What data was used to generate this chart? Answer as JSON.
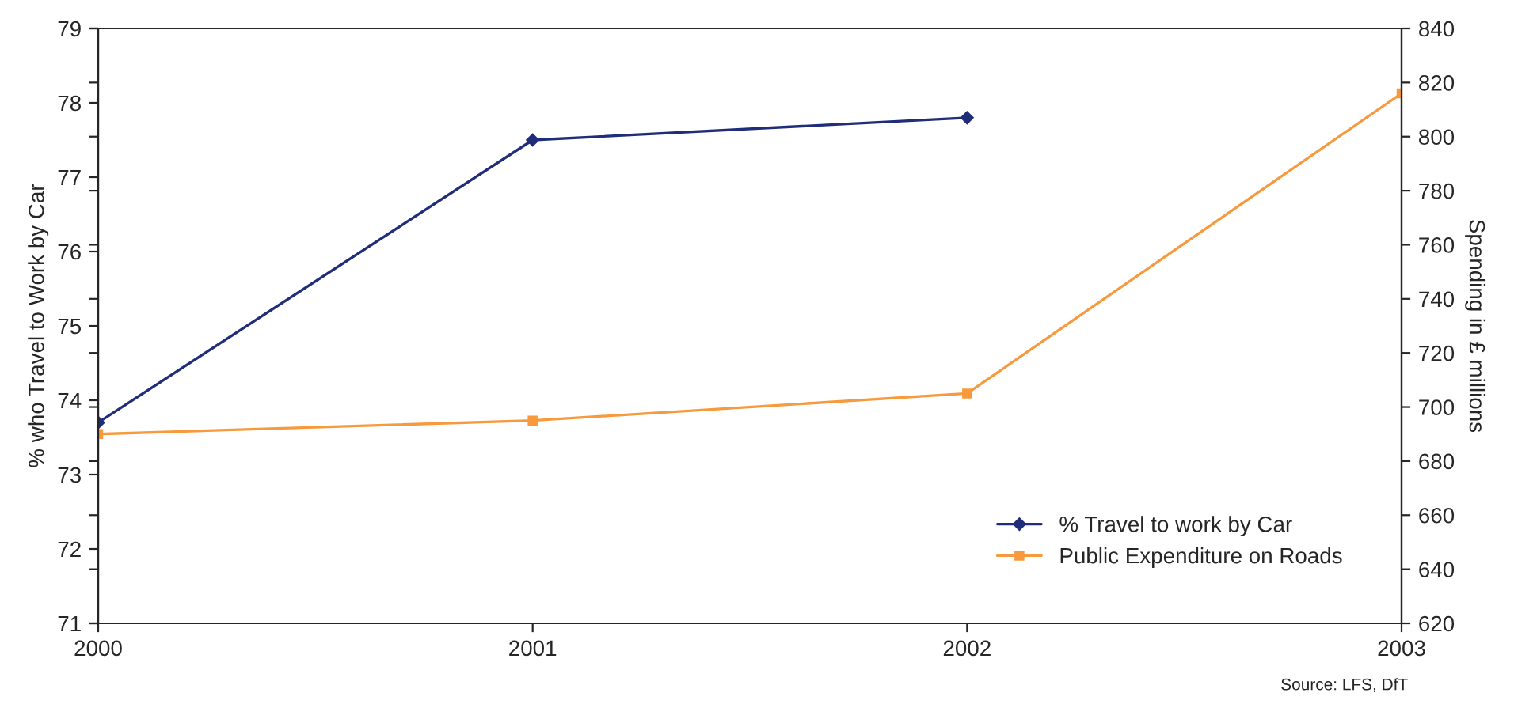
{
  "chart_data": {
    "type": "line",
    "x": [
      2000,
      2001,
      2002,
      2003
    ],
    "series": [
      {
        "name": "% Travel to work by Car",
        "color": "#1f2d7a",
        "marker": "diamond",
        "values": [
          73.7,
          77.5,
          77.8,
          null
        ]
      },
      {
        "name": "Public Expenditure on Roads",
        "color": "#f79a3e",
        "marker": "square",
        "axis": "y2",
        "values": [
          690,
          695,
          705,
          816
        ]
      }
    ],
    "ylabel": "% who Travel to Work by Car",
    "y2label": "Spending in £ millions",
    "xlim": [
      2000,
      2003
    ],
    "xticks": [
      2000,
      2001,
      2002,
      2003
    ],
    "ylim": [
      71,
      79
    ],
    "yticks": [
      71,
      72,
      73,
      74,
      75,
      76,
      77,
      78,
      79
    ],
    "y2lim": [
      620,
      840
    ],
    "y2ticks": [
      620,
      640,
      660,
      680,
      700,
      720,
      740,
      760,
      780,
      800,
      820,
      840
    ],
    "legend": "lower right",
    "grid": false,
    "annotations": [
      "Source: LFS, DfT"
    ]
  }
}
